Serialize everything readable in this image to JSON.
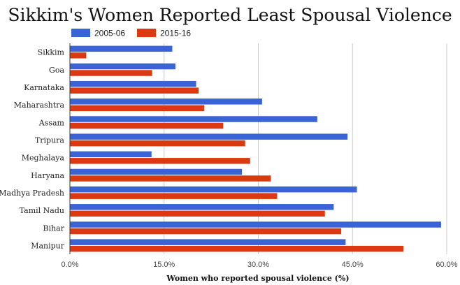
{
  "chart_data": {
    "type": "bar",
    "orientation": "horizontal",
    "title": "Sikkim's Women Reported Least Spousal Violence",
    "xlabel": "Women who reported spousal violence (%)",
    "ylabel": "",
    "xlim": [
      0,
      60
    ],
    "ticks": [
      0,
      15,
      30,
      45,
      60
    ],
    "tick_labels": [
      "0.0%",
      "15.0%",
      "30.0%",
      "45.0%",
      "60.0%"
    ],
    "grid": true,
    "legend_position": "top-left",
    "categories": [
      "Sikkim",
      "Goa",
      "Karnataka",
      "Maharashtra",
      "Assam",
      "Tripura",
      "Meghalaya",
      "Haryana",
      "Madhya Pradesh",
      "Tamil Nadu",
      "Bihar",
      "Manipur"
    ],
    "series": [
      {
        "name": "2005-06",
        "color": "#3a64d6",
        "values": [
          16.3,
          16.8,
          20.1,
          30.6,
          39.4,
          44.2,
          13.0,
          27.4,
          45.7,
          42.0,
          59.1,
          43.9
        ]
      },
      {
        "name": "2015-16",
        "color": "#dc3912",
        "values": [
          2.6,
          13.1,
          20.5,
          21.4,
          24.4,
          27.9,
          28.7,
          32.0,
          33.0,
          40.6,
          43.2,
          53.1
        ]
      }
    ]
  }
}
